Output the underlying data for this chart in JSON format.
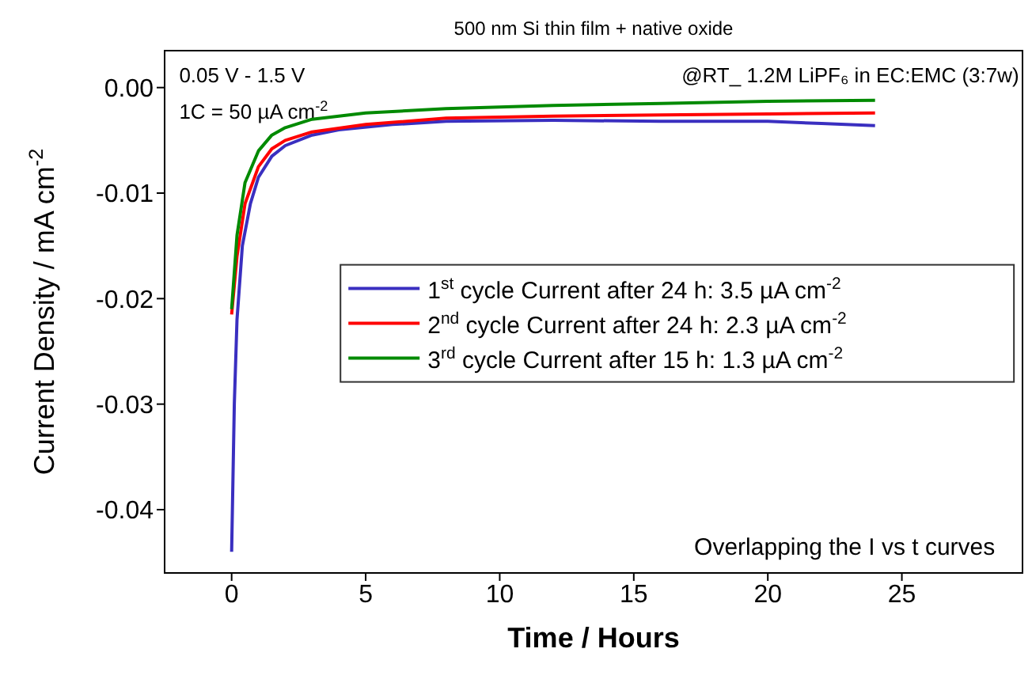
{
  "chart_data": {
    "type": "line",
    "title": "500 nm Si thin film + native oxide",
    "xlabel": "Time / Hours",
    "ylabel": "Current Density / mA cm$^{-2}$",
    "xlim": [
      -2.5,
      29.5
    ],
    "xticks": [
      0,
      5,
      10,
      15,
      20,
      25
    ],
    "ylim": [
      -0.046,
      0.0035
    ],
    "yticks": [
      {
        "value": 0,
        "label": "0.00"
      },
      {
        "value": -0.01,
        "label": "-0.01"
      },
      {
        "value": -0.02,
        "label": "-0.02"
      },
      {
        "value": -0.03,
        "label": "-0.03"
      },
      {
        "value": -0.04,
        "label": "-0.04"
      }
    ],
    "grid": false,
    "legend": "right",
    "marker": "none",
    "line_style": "solid",
    "annotations": [
      "0.05 V - 1.5 V",
      "1C = 50 µA cm$^{-2}$",
      "@RT_ 1.2M LiPF₆ in EC:EMC (3:7w)",
      "Overlapping the I vs t curves"
    ],
    "series": [
      {
        "name": "1$^{st}$ cycle Current after 24 h: 3.5 µA cm$^{-2}$",
        "color": "#3a2fc0",
        "x": [
          0,
          0.05,
          0.1,
          0.2,
          0.4,
          0.7,
          1,
          1.5,
          2,
          3,
          4,
          6,
          8,
          12,
          16,
          20,
          22,
          24
        ],
        "values": [
          -0.044,
          -0.037,
          -0.03,
          -0.022,
          -0.015,
          -0.011,
          -0.0085,
          -0.0065,
          -0.0055,
          -0.0045,
          -0.004,
          -0.0035,
          -0.0032,
          -0.0031,
          -0.0032,
          -0.0032,
          -0.0034,
          -0.0036
        ]
      },
      {
        "name": "2$^{nd}$ cycle Current after 24 h: 2.3 µA cm$^{-2}$",
        "color": "#ff0000",
        "x": [
          0,
          0.2,
          0.5,
          1,
          1.5,
          2,
          3,
          5,
          8,
          12,
          16,
          20,
          24
        ],
        "values": [
          -0.0215,
          -0.016,
          -0.011,
          -0.0075,
          -0.0058,
          -0.005,
          -0.0042,
          -0.0035,
          -0.0029,
          -0.0027,
          -0.0026,
          -0.0025,
          -0.0024
        ]
      },
      {
        "name": "3$^{rd}$ cycle Current after 15 h: 1.3 µA cm$^{-2}$",
        "color": "#008a00",
        "x": [
          0,
          0.2,
          0.5,
          1,
          1.5,
          2,
          3,
          5,
          8,
          12,
          16,
          20,
          24
        ],
        "values": [
          -0.021,
          -0.014,
          -0.009,
          -0.006,
          -0.0045,
          -0.0038,
          -0.003,
          -0.0024,
          -0.002,
          -0.0017,
          -0.0015,
          -0.0013,
          -0.0012
        ]
      }
    ]
  }
}
